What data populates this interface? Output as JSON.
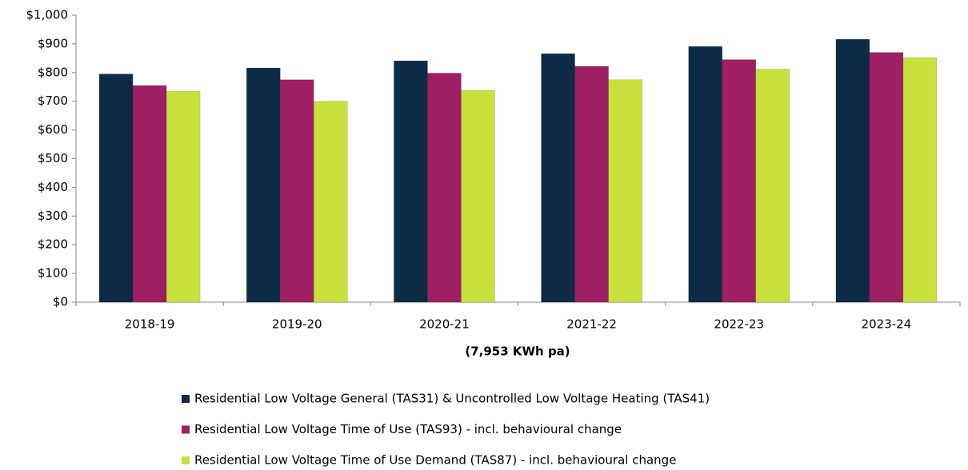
{
  "chart_data": {
    "type": "bar",
    "xlabel": "(7,953 KWh pa)",
    "categories": [
      "2018-19",
      "2019-20",
      "2020-21",
      "2021-22",
      "2022-23",
      "2023-24"
    ],
    "series": [
      {
        "name": "Residential Low Voltage General (TAS31) & Uncontrolled Low Voltage Heating (TAS41)",
        "color": "#0d2b47",
        "values": [
          795,
          816,
          841,
          866,
          891,
          916
        ]
      },
      {
        "name": "Residential Low Voltage Time of Use (TAS93) - incl. behavioural change",
        "color": "#9e1f63",
        "values": [
          755,
          775,
          798,
          822,
          845,
          870
        ]
      },
      {
        "name": "Residential Low Voltage Time of Use Demand (TAS87) - incl. behavioural change",
        "color": "#c9e03c",
        "values": [
          735,
          700,
          738,
          775,
          812,
          852
        ]
      }
    ],
    "ylim": [
      0,
      1000
    ],
    "yticks": [
      {
        "value": 0,
        "label": "$0"
      },
      {
        "value": 100,
        "label": "$100"
      },
      {
        "value": 200,
        "label": "$200"
      },
      {
        "value": 300,
        "label": "$300"
      },
      {
        "value": 400,
        "label": "$400"
      },
      {
        "value": 500,
        "label": "$500"
      },
      {
        "value": 600,
        "label": "$600"
      },
      {
        "value": 700,
        "label": "$700"
      },
      {
        "value": 800,
        "label": "$800"
      },
      {
        "value": 900,
        "label": "$900"
      },
      {
        "value": 1000,
        "label": "$1,000"
      }
    ],
    "grid": false,
    "legend": "bottom"
  }
}
